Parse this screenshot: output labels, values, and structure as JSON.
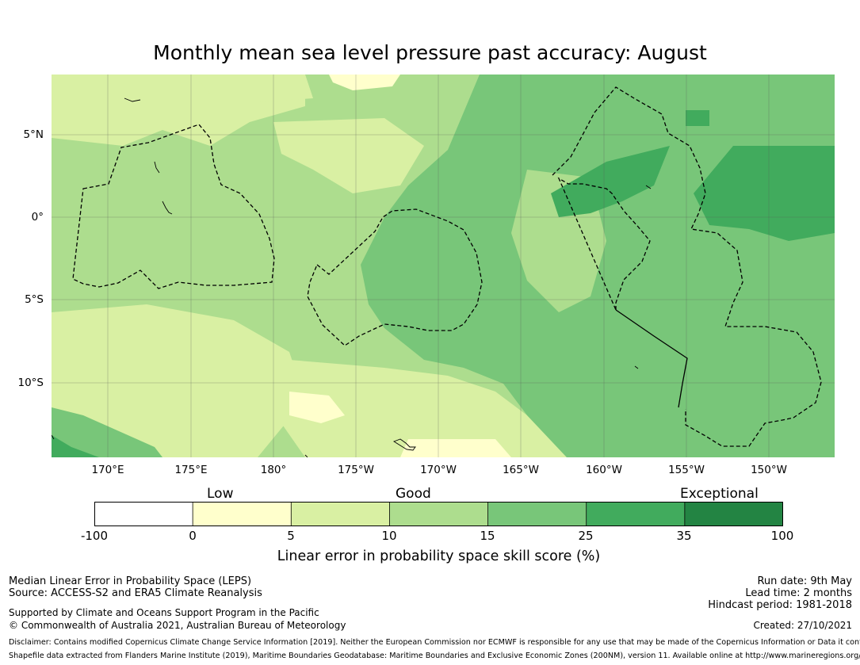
{
  "title": "Monthly mean sea level pressure past accuracy: August",
  "map": {
    "lat_ticks": [
      "5°N",
      "0°",
      "5°S",
      "10°S"
    ],
    "lon_ticks": [
      "170°E",
      "175°E",
      "180°",
      "175°W",
      "170°W",
      "165°W",
      "160°W",
      "155°W",
      "150°W"
    ],
    "lon_range": [
      166.9,
      214.4
    ],
    "lat_range": [
      -14.4,
      8.8
    ],
    "gridlines": true,
    "colors": {
      "neg": "#ffffff",
      "low": "#ffffcc",
      "c5_10": "#d9f0a3",
      "c10_15": "#addd8e",
      "c15_25": "#78c679",
      "c25_35": "#41ab5d",
      "c35_100": "#238443"
    }
  },
  "legend": {
    "categories": [
      "Low",
      "Good",
      "Exceptional"
    ],
    "ticks": [
      "-100",
      "0",
      "5",
      "10",
      "15",
      "25",
      "35",
      "100"
    ],
    "bins": [
      {
        "color": "#ffffff"
      },
      {
        "color": "#ffffcc"
      },
      {
        "color": "#d9f0a3"
      },
      {
        "color": "#addd8e"
      },
      {
        "color": "#78c679"
      },
      {
        "color": "#41ab5d"
      },
      {
        "color": "#238443"
      }
    ],
    "label": "Linear error in probability space skill score (%)"
  },
  "footer": {
    "left": [
      "Median Linear Error in Probability Space (LEPS)",
      "Source: ACCESS-S2 and ERA5 Climate Reanalysis",
      "Supported by Climate and Oceans Support Program in the Pacific",
      "© Commonwealth of Australia 2021, Australian Bureau of Meteorology"
    ],
    "right": [
      "Run date: 9th May",
      "Lead time: 2 months",
      "Hindcast period: 1981-2018",
      "Created: 27/10/2021"
    ],
    "disclaimer": "Disclaimer: Contains modified Copernicus Climate Change Service Information [2019]. Neither the European Commission nor ECMWF is responsible for any use that may be made of the Copernicus Information or Data it contains.",
    "shapefile": "Shapefile data extracted from Flanders Marine Institute (2019), Maritime Boundaries Geodatabase: Maritime Boundaries and Exclusive Economic Zones (200NM), version 11. Available online at http://www.marineregions.org/."
  }
}
